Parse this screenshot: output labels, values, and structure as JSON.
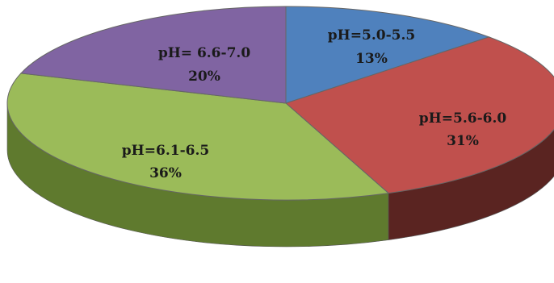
{
  "chart_data": {
    "type": "pie",
    "title": "",
    "slices": [
      {
        "label": "pH=5.0-5.5",
        "value": 13,
        "value_label": "13%",
        "color": "#4f81bd",
        "side_color": "#2c4f7c"
      },
      {
        "label": "pH=5.6-6.0",
        "value": 31,
        "value_label": "31%",
        "color": "#c0504d",
        "side_color": "#5a2421"
      },
      {
        "label": "pH=6.1-6.5",
        "value": 36,
        "value_label": "36%",
        "color": "#9bbb59",
        "side_color": "#5f7a2e"
      },
      {
        "label": "pH= 6.6-7.0",
        "value": 20,
        "value_label": "20%",
        "color": "#8064a2",
        "side_color": "#4b3566"
      }
    ],
    "start_position": "12 o'clock",
    "direction": "clockwise",
    "style": "3d"
  }
}
